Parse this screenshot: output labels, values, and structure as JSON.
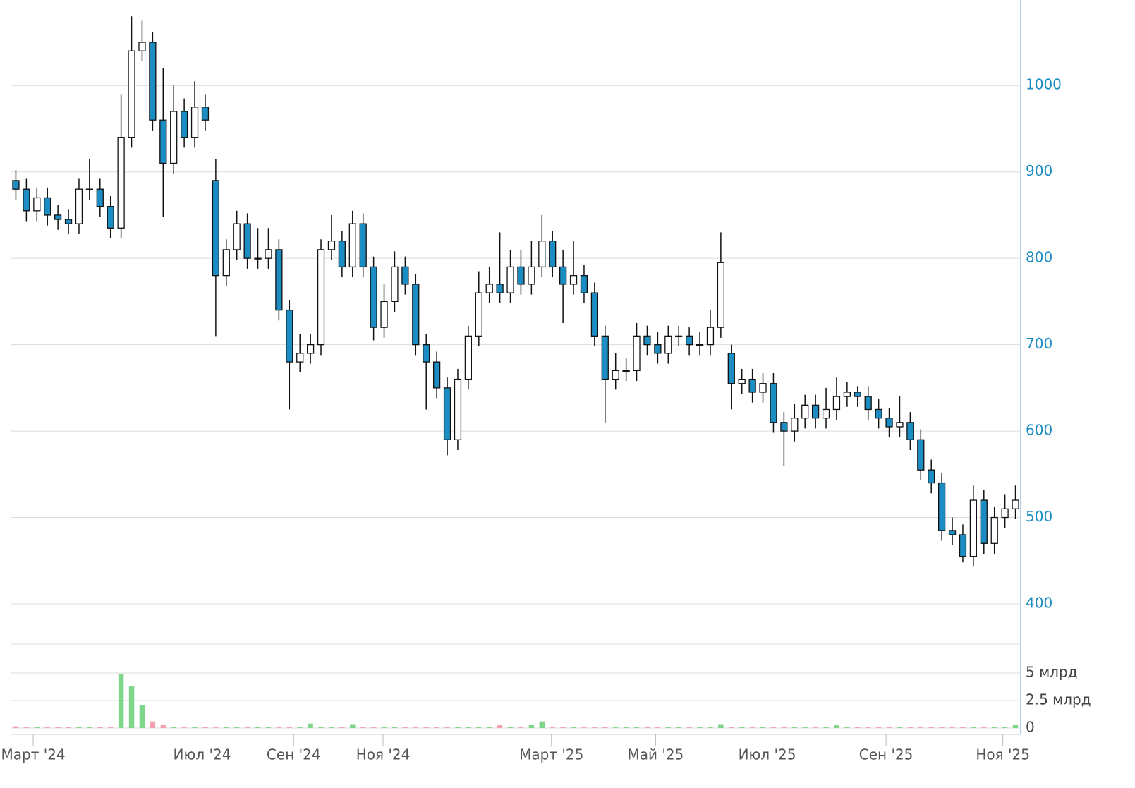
{
  "chart_data": {
    "type": "candlestick",
    "xlim": [
      -0.5,
      95.5
    ],
    "xticks": [
      {
        "value": 1.65,
        "label": "Март '24"
      },
      {
        "value": 17.7,
        "label": "Июл '24"
      },
      {
        "value": 26.4,
        "label": "Сен '24"
      },
      {
        "value": 34.9,
        "label": "Ноя '24"
      },
      {
        "value": 50.9,
        "label": "Март '25"
      },
      {
        "value": 60.8,
        "label": "Май '25"
      },
      {
        "value": 71.4,
        "label": "Июл '25"
      },
      {
        "value": 82.7,
        "label": "Сен '25"
      },
      {
        "value": 93.8,
        "label": "Ноя '25"
      }
    ],
    "ylim": [
      400,
      1099
    ],
    "yticks": [
      400,
      500,
      600,
      700,
      800,
      900,
      1000
    ],
    "grid": true,
    "up_color": "#ffffff",
    "down_color": "#1c8dc2",
    "outline_color": "#111111",
    "open": [
      890,
      880,
      855,
      870,
      850,
      845,
      840,
      880,
      880,
      860,
      835,
      940,
      1040,
      1050,
      960,
      910,
      970,
      940,
      975,
      890,
      780,
      810,
      840,
      800,
      800,
      810,
      740,
      680,
      690,
      700,
      810,
      820,
      790,
      840,
      790,
      720,
      750,
      790,
      770,
      700,
      680,
      650,
      590,
      660,
      710,
      760,
      770,
      760,
      790,
      770,
      790,
      820,
      790,
      770,
      780,
      760,
      710,
      660,
      670,
      670,
      710,
      700,
      690,
      710,
      710,
      700,
      700,
      720,
      690,
      655,
      660,
      645,
      655,
      610,
      600,
      615,
      630,
      615,
      625,
      640,
      645,
      640,
      625,
      615,
      605,
      610,
      590,
      555,
      540,
      485,
      480,
      455,
      520,
      470,
      500,
      510
    ],
    "high": [
      902,
      892,
      882,
      882,
      862,
      857,
      892,
      915,
      892,
      872,
      990,
      1080,
      1075,
      1062,
      1020,
      1000,
      985,
      1005,
      990,
      915,
      822,
      855,
      852,
      835,
      835,
      822,
      752,
      712,
      712,
      822,
      850,
      832,
      855,
      852,
      802,
      770,
      808,
      802,
      782,
      712,
      692,
      662,
      672,
      722,
      785,
      790,
      830,
      810,
      810,
      820,
      850,
      832,
      810,
      820,
      792,
      772,
      722,
      690,
      685,
      725,
      722,
      715,
      722,
      722,
      720,
      715,
      740,
      830,
      700,
      672,
      672,
      667,
      667,
      622,
      632,
      642,
      642,
      650,
      662,
      657,
      652,
      652,
      637,
      627,
      640,
      622,
      602,
      567,
      552,
      500,
      492,
      537,
      532,
      512,
      527,
      537
    ],
    "low": [
      868,
      843,
      843,
      838,
      833,
      828,
      828,
      868,
      848,
      823,
      823,
      928,
      1028,
      948,
      848,
      898,
      928,
      928,
      948,
      710,
      768,
      798,
      788,
      788,
      788,
      728,
      625,
      668,
      678,
      688,
      798,
      778,
      778,
      778,
      705,
      708,
      738,
      758,
      688,
      625,
      638,
      572,
      578,
      648,
      698,
      748,
      748,
      748,
      758,
      758,
      778,
      778,
      725,
      758,
      748,
      698,
      610,
      648,
      658,
      658,
      688,
      678,
      678,
      698,
      688,
      688,
      688,
      708,
      625,
      643,
      633,
      633,
      598,
      560,
      588,
      603,
      603,
      603,
      613,
      628,
      628,
      613,
      603,
      593,
      593,
      578,
      543,
      528,
      473,
      468,
      448,
      443,
      458,
      458,
      488,
      498
    ],
    "close": [
      880,
      855,
      870,
      850,
      845,
      840,
      880,
      880,
      860,
      835,
      940,
      1040,
      1050,
      960,
      910,
      970,
      940,
      975,
      960,
      780,
      810,
      840,
      800,
      800,
      810,
      740,
      680,
      690,
      700,
      810,
      820,
      790,
      840,
      790,
      720,
      750,
      790,
      770,
      700,
      680,
      650,
      590,
      660,
      710,
      760,
      770,
      760,
      790,
      770,
      790,
      820,
      790,
      770,
      780,
      760,
      710,
      660,
      670,
      670,
      710,
      700,
      690,
      710,
      710,
      700,
      700,
      720,
      795,
      655,
      660,
      645,
      655,
      610,
      600,
      615,
      630,
      615,
      625,
      640,
      645,
      640,
      625,
      615,
      605,
      610,
      590,
      555,
      540,
      485,
      480,
      455,
      520,
      470,
      500,
      510,
      520
    ],
    "volume": {
      "ylim": [
        0,
        7630000000
      ],
      "yticks": [
        {
          "value": 0,
          "label": "0"
        },
        {
          "value": 2500000000,
          "label": "2.5 млрд"
        },
        {
          "value": 5000000000,
          "label": "5 млрд"
        }
      ],
      "up_color": "#7fd68a",
      "down_color": "#f2a0b0",
      "values": [
        150000000,
        60000000,
        60000000,
        60000000,
        60000000,
        60000000,
        60000000,
        60000000,
        60000000,
        60000000,
        4900000000,
        3800000000,
        2100000000,
        600000000,
        300000000,
        60000000,
        60000000,
        60000000,
        60000000,
        60000000,
        60000000,
        60000000,
        60000000,
        60000000,
        60000000,
        60000000,
        60000000,
        60000000,
        400000000,
        60000000,
        60000000,
        60000000,
        350000000,
        60000000,
        60000000,
        60000000,
        60000000,
        60000000,
        60000000,
        60000000,
        60000000,
        60000000,
        60000000,
        60000000,
        60000000,
        60000000,
        250000000,
        60000000,
        60000000,
        300000000,
        600000000,
        60000000,
        60000000,
        60000000,
        60000000,
        60000000,
        60000000,
        60000000,
        60000000,
        60000000,
        60000000,
        60000000,
        60000000,
        60000000,
        60000000,
        60000000,
        60000000,
        350000000,
        60000000,
        60000000,
        60000000,
        60000000,
        60000000,
        60000000,
        60000000,
        60000000,
        60000000,
        60000000,
        250000000,
        60000000,
        60000000,
        60000000,
        60000000,
        60000000,
        60000000,
        60000000,
        60000000,
        60000000,
        60000000,
        60000000,
        60000000,
        60000000,
        60000000,
        60000000,
        60000000,
        300000000
      ]
    }
  }
}
